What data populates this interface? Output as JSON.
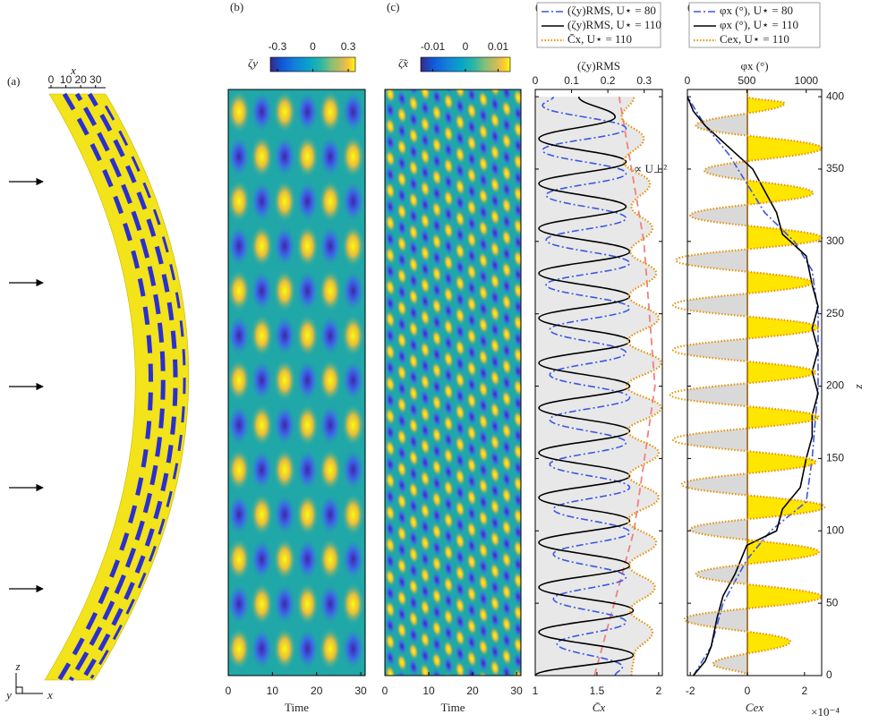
{
  "chart_data": [
    {
      "type": "image",
      "label": "(a)",
      "xlabel": "x",
      "xlim": [
        0,
        35
      ],
      "xticks": [
        0,
        10,
        20,
        30
      ],
      "triad": [
        "z",
        "y",
        "x"
      ]
    },
    {
      "type": "heatmap",
      "label": "(b)",
      "colorbar_label": "ζy",
      "clim": [
        -0.36,
        0.36
      ],
      "cticks": [
        -0.3,
        0,
        0.3
      ],
      "xlabel": "Time",
      "xlim": [
        0,
        31
      ],
      "xticks": [
        0,
        10,
        20,
        30
      ]
    },
    {
      "type": "heatmap",
      "label": "(c)",
      "colorbar_label": "ζ̃x",
      "clim": [
        -0.0137,
        0.0137
      ],
      "cticks": [
        -0.01,
        0,
        0.01
      ],
      "xlabel": "Time",
      "xlim": [
        0,
        31
      ],
      "xticks": [
        0,
        10,
        20,
        30
      ]
    },
    {
      "type": "line",
      "label": "(d)",
      "x2label": "(ζy)RMS",
      "x2lim": [
        0,
        0.35
      ],
      "x2ticks": [
        0,
        0.1,
        0.2,
        0.3
      ],
      "xlabel": "C̄x",
      "xlim": [
        1,
        2.03
      ],
      "xticks": [
        1,
        1.5,
        2
      ],
      "ylim": [
        0,
        405
      ],
      "yticks": [
        0,
        50,
        100,
        150,
        200,
        250,
        300,
        350,
        400
      ],
      "series": [
        {
          "name": "(ζy)RMS, U⋆ = 80",
          "color": "#3b57e0",
          "style": "dashdot",
          "axis": "x2",
          "smooth": true,
          "z": [
            0,
            6,
            22,
            37,
            53,
            68,
            84,
            99,
            115,
            130,
            146,
            161,
            177,
            192,
            208,
            223,
            239,
            254,
            270,
            285,
            301,
            316,
            332,
            347,
            363,
            378,
            394,
            400
          ],
          "values": [
            0.22,
            0.24,
            0.06,
            0.25,
            0.05,
            0.25,
            0.05,
            0.26,
            0.05,
            0.26,
            0.04,
            0.25,
            0.04,
            0.26,
            0.04,
            0.25,
            0.04,
            0.26,
            0.03,
            0.26,
            0.03,
            0.25,
            0.03,
            0.25,
            0.02,
            0.25,
            0.02,
            0.05
          ]
        },
        {
          "name": "(ζy)RMS, U⋆ = 110",
          "color": "#000000",
          "style": "solid",
          "axis": "x2",
          "smooth": true,
          "z": [
            0,
            14,
            30,
            45,
            61,
            76,
            92,
            107,
            123,
            138,
            154,
            169,
            185,
            200,
            216,
            231,
            247,
            262,
            278,
            293,
            309,
            324,
            340,
            355,
            371,
            386,
            400
          ],
          "values": [
            0,
            0.27,
            0.01,
            0.27,
            0.01,
            0.26,
            0.01,
            0.26,
            0.01,
            0.26,
            0.01,
            0.26,
            0.01,
            0.26,
            0.01,
            0.26,
            0.01,
            0.26,
            0.01,
            0.26,
            0.01,
            0.25,
            0.01,
            0.25,
            0.01,
            0.22,
            0.12
          ]
        },
        {
          "name": "C̄x, U⋆ = 110",
          "color": "#e8930c",
          "style": "dotted",
          "axis": "x",
          "smooth": true,
          "fill": "#e8e8e8",
          "z": [
            0,
            14,
            30,
            45,
            61,
            76,
            92,
            107,
            123,
            138,
            154,
            169,
            185,
            200,
            216,
            231,
            247,
            262,
            278,
            293,
            309,
            324,
            340,
            355,
            371,
            386,
            400
          ],
          "values": [
            1.78,
            1.8,
            1.95,
            1.77,
            1.97,
            1.76,
            1.98,
            1.75,
            2.0,
            1.76,
            2.0,
            1.75,
            2.02,
            1.74,
            2.02,
            1.75,
            2.0,
            1.76,
            1.98,
            1.77,
            1.95,
            1.78,
            1.93,
            1.72,
            1.88,
            1.7,
            1.8
          ]
        }
      ],
      "trend": {
        "label": "∝ U⊥²",
        "color": "#f08080",
        "z": [
          0,
          100,
          200,
          300,
          400
        ],
        "values": [
          1.48,
          1.8,
          1.97,
          1.88,
          1.68
        ]
      }
    },
    {
      "type": "line",
      "label": "(e)",
      "x2label": "φx (°)",
      "x2lim": [
        0,
        1130
      ],
      "x2ticks": [
        0,
        500,
        1000
      ],
      "xlabel": "Cex",
      "xlim": [
        -2.1,
        2.6
      ],
      "xticks": [
        -2,
        0,
        2
      ],
      "multiplier": "×10⁻⁴",
      "ylabel": "z",
      "ylim": [
        0,
        405
      ],
      "yticks": [
        0,
        50,
        100,
        150,
        200,
        250,
        300,
        350,
        400
      ],
      "series": [
        {
          "name": "φx (°), U⋆ = 80",
          "color": "#3b57e0",
          "style": "dashdot",
          "axis": "x2",
          "smooth": false,
          "z": [
            0,
            20,
            50,
            80,
            100,
            120,
            150,
            200,
            250,
            280,
            300,
            320,
            340,
            360,
            380,
            400
          ],
          "values": [
            50,
            200,
            300,
            500,
            700,
            1000,
            1050,
            1100,
            1100,
            1050,
            900,
            650,
            500,
            350,
            150,
            0
          ]
        },
        {
          "name": "φx (°), U⋆ = 110",
          "color": "#000000",
          "style": "solid",
          "axis": "x2",
          "smooth": false,
          "z": [
            0,
            10,
            20,
            40,
            55,
            70,
            90,
            100,
            115,
            130,
            150,
            165,
            180,
            195,
            210,
            225,
            240,
            255,
            270,
            290,
            305,
            320,
            335,
            350,
            365,
            380,
            390,
            400
          ],
          "values": [
            50,
            150,
            200,
            250,
            300,
            400,
            500,
            750,
            800,
            950,
            1000,
            1050,
            1050,
            1100,
            1050,
            1100,
            1050,
            1100,
            1050,
            1000,
            800,
            750,
            650,
            550,
            350,
            150,
            50,
            0
          ]
        },
        {
          "name": "Cex, U⋆ = 110",
          "color": "#e8930c",
          "style": "dotted",
          "axis": "x",
          "smooth": true,
          "fill_colors": [
            "#d9d9d9",
            "#ffe600"
          ],
          "z": [
            0,
            8,
            23.5,
            39,
            54.5,
            70,
            85.5,
            101,
            116.5,
            132,
            147.5,
            163,
            178.5,
            194,
            209.5,
            225,
            240.5,
            256,
            271.5,
            287,
            302.5,
            318,
            333.5,
            349,
            364.5,
            380,
            395.5,
            400
          ],
          "values": [
            0,
            -1.2,
            1.5,
            -2.2,
            2.6,
            -1.8,
            2.5,
            -2.0,
            2.7,
            -2.3,
            2.4,
            -2.6,
            2.5,
            -2.7,
            2.4,
            -2.6,
            2.5,
            -2.6,
            2.3,
            -2.5,
            2.6,
            -2.0,
            2.3,
            -1.5,
            2.6,
            -1.8,
            1.3,
            0
          ]
        }
      ]
    }
  ]
}
